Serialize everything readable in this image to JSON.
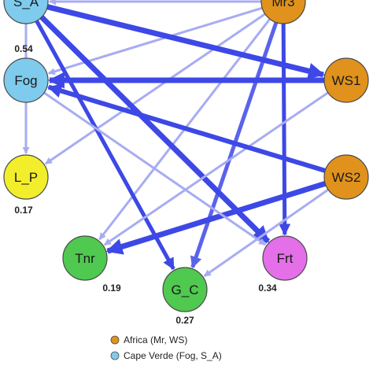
{
  "nodes": [
    {
      "id": "S_A",
      "label": "S_A",
      "color": "#7ecbee"
    },
    {
      "id": "Mr3",
      "label": "Mr3",
      "color": "#e0921c"
    },
    {
      "id": "Fog",
      "label": "Fog",
      "color": "#7ecbee",
      "value": "0.54"
    },
    {
      "id": "WS1",
      "label": "WS1",
      "color": "#e0921c"
    },
    {
      "id": "L_P",
      "label": "L_P",
      "color": "#f2ee2c",
      "value": "0.17"
    },
    {
      "id": "WS2",
      "label": "WS2",
      "color": "#e0921c"
    },
    {
      "id": "Tnr",
      "label": "Tnr",
      "color": "#4fc94f",
      "value": "0.19"
    },
    {
      "id": "G_C",
      "label": "G_C",
      "color": "#4fc94f",
      "value": "0.27"
    },
    {
      "id": "Frt",
      "label": "Frt",
      "color": "#e46fe8",
      "value": "0.34"
    }
  ],
  "edges": [
    {
      "from": "Mr3",
      "to": "S_A",
      "weight": 3,
      "strength": "light"
    },
    {
      "from": "Mr3",
      "to": "Fog",
      "weight": 3,
      "strength": "light"
    },
    {
      "from": "Mr3",
      "to": "L_P",
      "weight": 3,
      "strength": "light"
    },
    {
      "from": "Mr3",
      "to": "Tnr",
      "weight": 3,
      "strength": "light"
    },
    {
      "from": "Mr3",
      "to": "G_C",
      "weight": 5,
      "strength": "medium"
    },
    {
      "from": "Mr3",
      "to": "Frt",
      "weight": 5,
      "strength": "strong"
    },
    {
      "from": "S_A",
      "to": "WS1",
      "weight": 7,
      "strength": "strong"
    },
    {
      "from": "S_A",
      "to": "Frt",
      "weight": 7,
      "strength": "strong"
    },
    {
      "from": "S_A",
      "to": "L_P",
      "weight": 3,
      "strength": "light"
    },
    {
      "from": "S_A",
      "to": "G_C",
      "weight": 5,
      "strength": "strong"
    },
    {
      "from": "WS1",
      "to": "Fog",
      "weight": 7,
      "strength": "strong"
    },
    {
      "from": "WS1",
      "to": "Tnr",
      "weight": 3,
      "strength": "light"
    },
    {
      "from": "WS2",
      "to": "Fog",
      "weight": 6,
      "strength": "strong"
    },
    {
      "from": "WS2",
      "to": "Tnr",
      "weight": 7,
      "strength": "strong"
    },
    {
      "from": "WS2",
      "to": "G_C",
      "weight": 3,
      "strength": "light"
    },
    {
      "from": "Fog",
      "to": "Frt",
      "weight": 3,
      "strength": "light"
    }
  ],
  "colors": {
    "strong": "#3d48e6",
    "medium": "#5a63ea",
    "light": "#a7acf2",
    "node_border": "#4a4a4a"
  },
  "legend": [
    {
      "label": "Africa (Mr, WS)",
      "color": "#e0921c"
    },
    {
      "label": "Cape Verde (Fog, S_A)",
      "color": "#7ecbee"
    }
  ]
}
